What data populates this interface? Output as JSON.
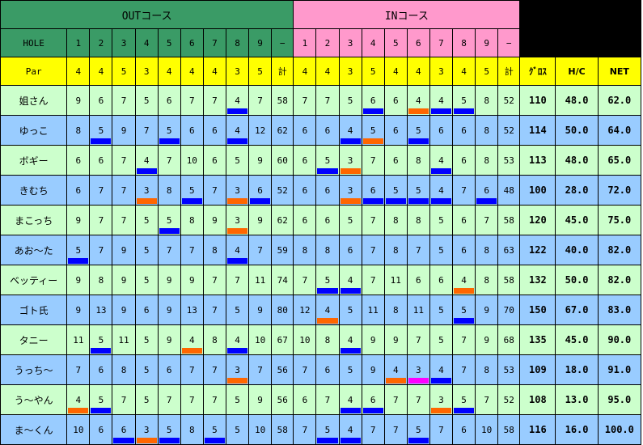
{
  "header": {
    "out_title": "OUTコース",
    "in_title": "INコース",
    "hole_label": "HOLE",
    "par_label": "Par",
    "out_holes": [
      "1",
      "2",
      "3",
      "4",
      "5",
      "6",
      "7",
      "8",
      "9",
      "−"
    ],
    "in_holes": [
      "1",
      "2",
      "3",
      "4",
      "5",
      "6",
      "7",
      "8",
      "9",
      "−"
    ],
    "out_par": [
      "4",
      "4",
      "5",
      "3",
      "4",
      "4",
      "4",
      "3",
      "5",
      "計"
    ],
    "in_par": [
      "4",
      "4",
      "3",
      "5",
      "4",
      "4",
      "3",
      "4",
      "5",
      "計"
    ],
    "gross_label": "ｸﾞﾛｽ",
    "hc_label": "H/C",
    "net_label": "NET"
  },
  "colors": {
    "out_header": "#3a9b66",
    "in_header": "#ff99cc",
    "par_row": "#ffff00",
    "row_green": "#ccffcc",
    "row_blue": "#99ccff",
    "mark_birdie": "#0000ff",
    "mark_par3_birdie": "#ff6600",
    "mark_eagle": "#ff00ff"
  },
  "players": [
    {
      "name": "姐さん",
      "out": [
        "9",
        "6",
        "7",
        "5",
        "6",
        "7",
        "7",
        "4",
        "7",
        "58"
      ],
      "in": [
        "7",
        "7",
        "5",
        "6",
        "6",
        "4",
        "4",
        "5",
        "8",
        "52"
      ],
      "gross": "110",
      "hc": "48.0",
      "net": "62.0",
      "marks_out": [
        "",
        "",
        "",
        "",
        "",
        "",
        "",
        "blue",
        "",
        ""
      ],
      "marks_in": [
        "",
        "",
        "",
        "blue",
        "",
        "orange",
        "blue",
        "blue",
        "",
        ""
      ]
    },
    {
      "name": "ゆっこ",
      "out": [
        "8",
        "5",
        "9",
        "7",
        "5",
        "6",
        "6",
        "4",
        "12",
        "62"
      ],
      "in": [
        "6",
        "6",
        "4",
        "5",
        "6",
        "5",
        "6",
        "6",
        "8",
        "52"
      ],
      "gross": "114",
      "hc": "50.0",
      "net": "64.0",
      "marks_out": [
        "",
        "blue",
        "",
        "",
        "blue",
        "",
        "",
        "blue",
        "",
        ""
      ],
      "marks_in": [
        "",
        "",
        "blue",
        "orange",
        "",
        "blue",
        "",
        "",
        "",
        ""
      ]
    },
    {
      "name": "ボギー",
      "out": [
        "6",
        "6",
        "7",
        "4",
        "7",
        "10",
        "6",
        "5",
        "9",
        "60"
      ],
      "in": [
        "6",
        "5",
        "3",
        "7",
        "6",
        "8",
        "4",
        "6",
        "8",
        "53"
      ],
      "gross": "113",
      "hc": "48.0",
      "net": "65.0",
      "marks_out": [
        "",
        "",
        "",
        "blue",
        "",
        "",
        "",
        "",
        "",
        ""
      ],
      "marks_in": [
        "",
        "blue",
        "orange",
        "",
        "",
        "",
        "blue",
        "",
        "",
        ""
      ]
    },
    {
      "name": "きむち",
      "out": [
        "6",
        "7",
        "7",
        "3",
        "8",
        "5",
        "7",
        "3",
        "6",
        "52"
      ],
      "in": [
        "6",
        "6",
        "3",
        "6",
        "5",
        "5",
        "4",
        "7",
        "6",
        "48"
      ],
      "gross": "100",
      "hc": "28.0",
      "net": "72.0",
      "marks_out": [
        "",
        "",
        "",
        "orange",
        "",
        "blue",
        "",
        "orange",
        "blue",
        ""
      ],
      "marks_in": [
        "",
        "",
        "orange",
        "blue",
        "blue",
        "blue",
        "blue",
        "",
        "blue",
        ""
      ]
    },
    {
      "name": "まこっち",
      "out": [
        "9",
        "7",
        "7",
        "5",
        "5",
        "8",
        "9",
        "3",
        "9",
        "62"
      ],
      "in": [
        "6",
        "6",
        "5",
        "7",
        "8",
        "8",
        "5",
        "6",
        "7",
        "58"
      ],
      "gross": "120",
      "hc": "45.0",
      "net": "75.0",
      "marks_out": [
        "",
        "",
        "",
        "",
        "blue",
        "",
        "",
        "orange",
        "",
        ""
      ],
      "marks_in": [
        "",
        "",
        "",
        "",
        "",
        "",
        "",
        "",
        "",
        ""
      ]
    },
    {
      "name": "あお～た",
      "out": [
        "5",
        "7",
        "9",
        "5",
        "7",
        "7",
        "8",
        "4",
        "7",
        "59"
      ],
      "in": [
        "8",
        "8",
        "6",
        "7",
        "8",
        "7",
        "5",
        "6",
        "8",
        "63"
      ],
      "gross": "122",
      "hc": "40.0",
      "net": "82.0",
      "marks_out": [
        "blue",
        "",
        "",
        "",
        "",
        "",
        "",
        "blue",
        "",
        ""
      ],
      "marks_in": [
        "",
        "",
        "",
        "",
        "",
        "",
        "",
        "",
        "",
        ""
      ]
    },
    {
      "name": "ベッティー",
      "out": [
        "9",
        "8",
        "9",
        "5",
        "9",
        "9",
        "7",
        "7",
        "11",
        "74"
      ],
      "in": [
        "7",
        "5",
        "4",
        "7",
        "11",
        "6",
        "6",
        "4",
        "8",
        "58"
      ],
      "gross": "132",
      "hc": "50.0",
      "net": "82.0",
      "marks_out": [
        "",
        "",
        "",
        "",
        "",
        "",
        "",
        "",
        "",
        ""
      ],
      "marks_in": [
        "",
        "blue",
        "blue",
        "",
        "",
        "",
        "",
        "orange",
        "",
        ""
      ]
    },
    {
      "name": "ゴト氏",
      "out": [
        "9",
        "13",
        "9",
        "6",
        "9",
        "13",
        "7",
        "5",
        "9",
        "80"
      ],
      "in": [
        "12",
        "4",
        "5",
        "11",
        "8",
        "11",
        "5",
        "5",
        "9",
        "70"
      ],
      "gross": "150",
      "hc": "67.0",
      "net": "83.0",
      "marks_out": [
        "",
        "",
        "",
        "",
        "",
        "",
        "",
        "",
        "",
        ""
      ],
      "marks_in": [
        "",
        "orange",
        "",
        "",
        "",
        "",
        "",
        "blue",
        "",
        ""
      ]
    },
    {
      "name": "タニー",
      "out": [
        "11",
        "5",
        "11",
        "5",
        "9",
        "4",
        "8",
        "4",
        "10",
        "67"
      ],
      "in": [
        "10",
        "8",
        "4",
        "9",
        "9",
        "7",
        "5",
        "7",
        "9",
        "68"
      ],
      "gross": "135",
      "hc": "45.0",
      "net": "90.0",
      "marks_out": [
        "",
        "blue",
        "",
        "",
        "",
        "orange",
        "",
        "blue",
        "",
        ""
      ],
      "marks_in": [
        "",
        "",
        "blue",
        "",
        "",
        "",
        "",
        "",
        "",
        ""
      ]
    },
    {
      "name": "うっち～",
      "out": [
        "7",
        "6",
        "8",
        "5",
        "6",
        "7",
        "7",
        "3",
        "7",
        "56"
      ],
      "in": [
        "7",
        "6",
        "5",
        "9",
        "4",
        "3",
        "4",
        "7",
        "8",
        "53"
      ],
      "gross": "109",
      "hc": "18.0",
      "net": "91.0",
      "marks_out": [
        "",
        "",
        "",
        "",
        "",
        "",
        "",
        "orange",
        "",
        ""
      ],
      "marks_in": [
        "",
        "",
        "",
        "",
        "orange",
        "magenta",
        "blue",
        "",
        "",
        ""
      ]
    },
    {
      "name": "う～やん",
      "out": [
        "4",
        "5",
        "7",
        "5",
        "7",
        "7",
        "7",
        "5",
        "9",
        "56"
      ],
      "in": [
        "6",
        "7",
        "4",
        "6",
        "7",
        "7",
        "3",
        "5",
        "7",
        "52"
      ],
      "gross": "108",
      "hc": "13.0",
      "net": "95.0",
      "marks_out": [
        "orange",
        "blue",
        "",
        "",
        "",
        "",
        "",
        "",
        "",
        ""
      ],
      "marks_in": [
        "",
        "",
        "blue",
        "blue",
        "",
        "",
        "orange",
        "blue",
        "",
        ""
      ]
    },
    {
      "name": "ま～くん",
      "out": [
        "10",
        "6",
        "6",
        "3",
        "5",
        "8",
        "5",
        "5",
        "10",
        "58"
      ],
      "in": [
        "7",
        "5",
        "4",
        "7",
        "7",
        "5",
        "7",
        "6",
        "10",
        "58"
      ],
      "gross": "116",
      "hc": "16.0",
      "net": "100.0",
      "marks_out": [
        "",
        "",
        "blue",
        "orange",
        "blue",
        "",
        "blue",
        "",
        "",
        ""
      ],
      "marks_in": [
        "",
        "blue",
        "blue",
        "",
        "",
        "blue",
        "",
        "",
        "",
        ""
      ]
    }
  ]
}
